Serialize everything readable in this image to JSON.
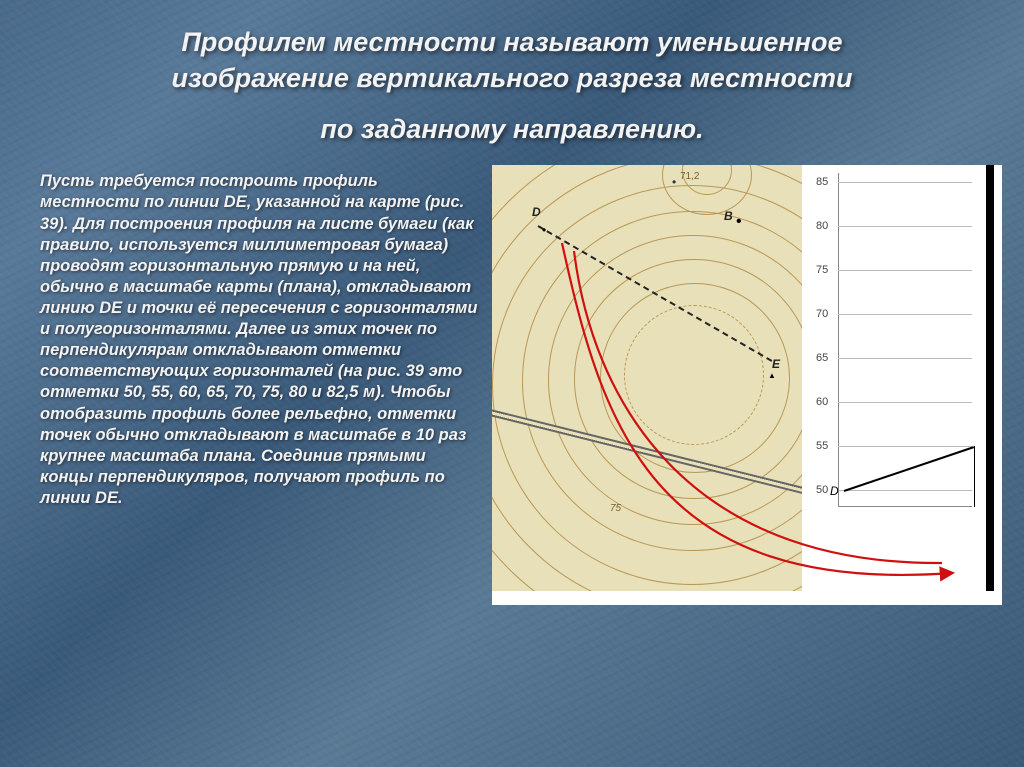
{
  "title": {
    "line1": "Профилем местности называют уменьшенное",
    "line2": "изображение вертикального разреза местности",
    "line3": "по заданному направлению."
  },
  "body": "Пусть требуется построить профиль местности по линии DE, указанной на карте (рис. 39). Для построения профиля на листе бумаги (как правило, используется миллиметровая бумага) проводят горизонтальную прямую и на ней, обычно в масштабе карты (плана), откладывают линию DE и точки её пересечения с горизонталями и полугоризонталями. Далее из этих точек по перпендикулярам откладывают отметки соответствующих горизонталей (на рис. 39 это отметки 50, 55, 60, 65, 70, 75, 80 и 82,5 м). Чтобы отобразить профиль более рельефно, отметки точек обычно откладывают в масштабе в 10 раз крупнее масштаба плана. Соединив прямыми концы перпендикуляров, получают профиль по линии DE.",
  "figure": {
    "map": {
      "bg_color": "#e8e0b8",
      "contour_color": "#b89858",
      "spot_elev": "71,2",
      "points": {
        "D": "D",
        "B": "B",
        "E": "E"
      },
      "road_angle_deg": 16,
      "line_DE_dash": true,
      "contour_label": "75"
    },
    "chart": {
      "type": "line",
      "y_ticks": [
        50,
        55,
        60,
        65,
        70,
        75,
        80,
        85
      ],
      "ylim": [
        48,
        86
      ],
      "tick_fontsize": 11,
      "grid_color": "#bbb",
      "bg": "#ffffff",
      "right_border_color": "#000000",
      "profile_start_label": "D",
      "profile": {
        "x": [
          0,
          1
        ],
        "y": [
          50,
          55
        ]
      },
      "line_color": "#000000",
      "line_width": 2
    },
    "arrows": {
      "color": "#d01010",
      "width": 2
    }
  },
  "colors": {
    "slide_bg_a": "#4a6a8a",
    "slide_bg_b": "#3a5a78",
    "text": "#f5f5f5"
  }
}
